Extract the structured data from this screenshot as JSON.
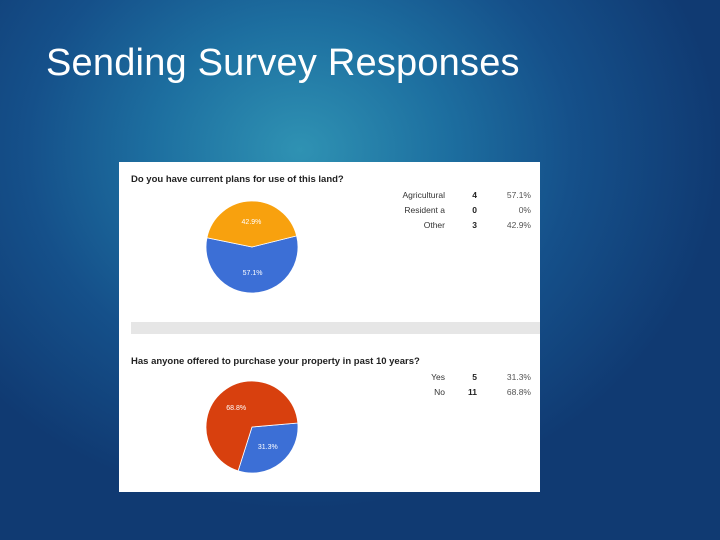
{
  "slide": {
    "title": "Sending Survey Responses"
  },
  "colors": {
    "blue": "#3c6fd6",
    "orange": "#f8a10e",
    "red": "#d8400e"
  },
  "chart_data": [
    {
      "type": "pie",
      "title": "Do you have current plans for use of this land?",
      "categories": [
        "Agricultural",
        "Resident a",
        "Other"
      ],
      "counts": [
        4,
        0,
        3
      ],
      "percent_labels": [
        "57.1%",
        "0%",
        "42.9%"
      ],
      "values": [
        57.1,
        0,
        42.9
      ],
      "colors": [
        "#3c6fd6",
        "#d8400e",
        "#f8a10e"
      ],
      "slice_labels": [
        "57.1%",
        "",
        "42.9%"
      ]
    },
    {
      "type": "pie",
      "title": "Has anyone offered to purchase your property in past 10 years?",
      "categories": [
        "Yes",
        "No"
      ],
      "counts": [
        5,
        11
      ],
      "percent_labels": [
        "31.3%",
        "68.8%"
      ],
      "values": [
        31.3,
        68.8
      ],
      "colors": [
        "#3c6fd6",
        "#d8400e"
      ],
      "slice_labels": [
        "31.3%",
        "68.8%"
      ]
    }
  ]
}
